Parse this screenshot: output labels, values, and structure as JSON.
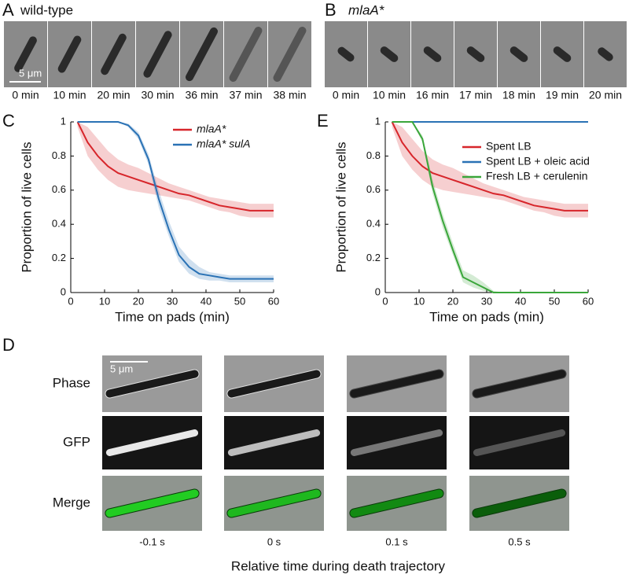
{
  "panel_a": {
    "label": "A",
    "title": "wild-type",
    "scale_bar": "5 μm",
    "times": [
      "0 min",
      "10 min",
      "20 min",
      "30 min",
      "36 min",
      "37 min",
      "38 min"
    ]
  },
  "panel_b": {
    "label": "B",
    "title": "mlaA*",
    "times": [
      "0 min",
      "10 min",
      "16 min",
      "17 min",
      "18 min",
      "19 min",
      "20 min"
    ]
  },
  "chart_data": [
    {
      "type": "line",
      "label": "C",
      "xlabel": "Time on pads (min)",
      "ylabel": "Proportion of live cells",
      "x": [
        2,
        5,
        8,
        11,
        14,
        17,
        20,
        23,
        26,
        29,
        32,
        35,
        38,
        41,
        44,
        47,
        50,
        53,
        56,
        60
      ],
      "xlim": [
        0,
        60
      ],
      "ylim": [
        0,
        1
      ],
      "xticks": [
        0,
        10,
        20,
        30,
        40,
        50,
        60
      ],
      "yticks": [
        0,
        0.2,
        0.4,
        0.6,
        0.8,
        1
      ],
      "legend": "upper right",
      "legend_italic": true,
      "series": [
        {
          "name": "mlaA*",
          "color": "#d7262b",
          "values": [
            1,
            0.88,
            0.8,
            0.74,
            0.7,
            0.68,
            0.66,
            0.64,
            0.62,
            0.6,
            0.58,
            0.57,
            0.55,
            0.53,
            0.51,
            0.5,
            0.49,
            0.48,
            0.48,
            0.48
          ],
          "lower": [
            0.97,
            0.8,
            0.72,
            0.66,
            0.62,
            0.6,
            0.59,
            0.58,
            0.57,
            0.56,
            0.55,
            0.54,
            0.52,
            0.5,
            0.48,
            0.47,
            0.45,
            0.44,
            0.44,
            0.44
          ],
          "upper": [
            1,
            0.97,
            0.9,
            0.83,
            0.78,
            0.75,
            0.73,
            0.7,
            0.67,
            0.64,
            0.62,
            0.6,
            0.58,
            0.56,
            0.55,
            0.54,
            0.53,
            0.52,
            0.52,
            0.52
          ]
        },
        {
          "name": "mlaA* sulA",
          "color": "#2a72b5",
          "values": [
            1,
            1,
            1,
            1,
            1,
            0.98,
            0.92,
            0.78,
            0.55,
            0.37,
            0.22,
            0.15,
            0.11,
            0.1,
            0.09,
            0.08,
            0.08,
            0.08,
            0.08,
            0.08
          ],
          "lower": [
            1,
            1,
            1,
            1,
            1,
            0.97,
            0.9,
            0.75,
            0.5,
            0.33,
            0.18,
            0.11,
            0.08,
            0.07,
            0.07,
            0.06,
            0.06,
            0.06,
            0.06,
            0.06
          ],
          "upper": [
            1,
            1,
            1,
            1,
            1,
            0.99,
            0.94,
            0.81,
            0.6,
            0.42,
            0.27,
            0.2,
            0.15,
            0.12,
            0.11,
            0.1,
            0.1,
            0.1,
            0.1,
            0.1
          ]
        }
      ]
    },
    {
      "type": "line",
      "label": "E",
      "xlabel": "Time on pads (min)",
      "ylabel": "Proportion of live cells",
      "x": [
        2,
        5,
        8,
        11,
        14,
        17,
        20,
        23,
        26,
        29,
        32,
        35,
        38,
        41,
        44,
        47,
        50,
        53,
        56,
        60
      ],
      "xlim": [
        0,
        60
      ],
      "ylim": [
        0,
        1
      ],
      "xticks": [
        0,
        10,
        20,
        30,
        40,
        50,
        60
      ],
      "yticks": [
        0,
        0.2,
        0.4,
        0.6,
        0.8,
        1
      ],
      "legend": "upper right",
      "legend_italic": false,
      "series": [
        {
          "name": "Spent LB",
          "color": "#d7262b",
          "values": [
            1,
            0.88,
            0.8,
            0.74,
            0.7,
            0.68,
            0.66,
            0.64,
            0.62,
            0.6,
            0.58,
            0.57,
            0.55,
            0.53,
            0.51,
            0.5,
            0.49,
            0.48,
            0.48,
            0.48
          ],
          "lower": [
            0.97,
            0.8,
            0.72,
            0.66,
            0.62,
            0.6,
            0.59,
            0.58,
            0.57,
            0.56,
            0.55,
            0.54,
            0.52,
            0.5,
            0.48,
            0.47,
            0.45,
            0.44,
            0.44,
            0.44
          ],
          "upper": [
            1,
            0.97,
            0.9,
            0.83,
            0.78,
            0.75,
            0.73,
            0.7,
            0.67,
            0.64,
            0.62,
            0.6,
            0.58,
            0.56,
            0.55,
            0.54,
            0.53,
            0.52,
            0.52,
            0.52
          ]
        },
        {
          "name": "Spent LB + oleic acid",
          "color": "#2a72b5",
          "values": [
            1,
            1,
            1,
            1,
            1,
            1,
            1,
            1,
            1,
            1,
            1,
            1,
            1,
            1,
            1,
            1,
            1,
            1,
            1,
            1
          ]
        },
        {
          "name": "Fresh LB + cerulenin",
          "color": "#3aa63a",
          "values": [
            1,
            1,
            1,
            0.9,
            0.62,
            0.42,
            0.25,
            0.09,
            0.06,
            0.03,
            0,
            0,
            0,
            0,
            0,
            0,
            0,
            0,
            0,
            0
          ],
          "lower": [
            1,
            1,
            1,
            0.88,
            0.58,
            0.38,
            0.22,
            0.06,
            0.03,
            0.01,
            0,
            0,
            0,
            0,
            0,
            0,
            0,
            0,
            0,
            0
          ],
          "upper": [
            1,
            1,
            1,
            0.92,
            0.66,
            0.46,
            0.29,
            0.13,
            0.1,
            0.06,
            0.01,
            0,
            0,
            0,
            0,
            0,
            0,
            0,
            0,
            0
          ]
        }
      ]
    }
  ],
  "panel_d": {
    "label": "D",
    "scale_bar": "5 μm",
    "rows": [
      "Phase",
      "GFP",
      "Merge"
    ],
    "times": [
      "-0.1 s",
      "0 s",
      "0.1 s",
      "0.5 s"
    ],
    "xlabel": "Relative time during death trajectory"
  }
}
